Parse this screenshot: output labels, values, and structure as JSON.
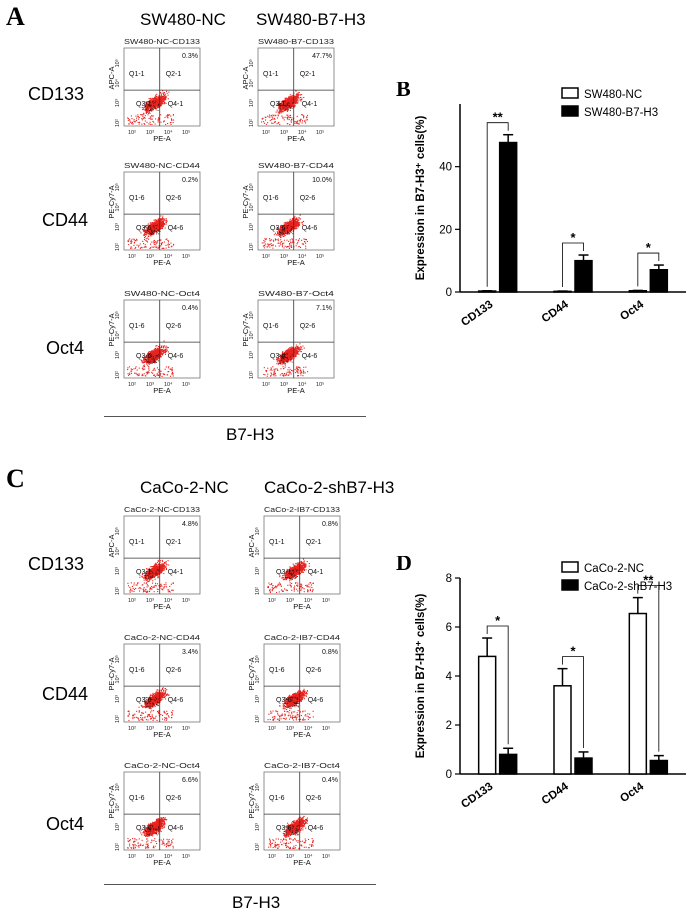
{
  "top": {
    "letter": "A",
    "col_headers": [
      "SW480-NC",
      "SW480-B7-H3"
    ],
    "row_labels": [
      "CD133",
      "CD44",
      "Oct4"
    ],
    "xaxis_label": "B7-H3"
  },
  "bottom": {
    "letter": "C",
    "col_headers": [
      "CaCo-2-NC",
      "CaCo-2-shB7-H3"
    ],
    "row_labels": [
      "CD133",
      "CD44",
      "Oct4"
    ],
    "xaxis_label": "B7-H3"
  },
  "flow_plots": [
    {
      "title": "SW480-NC-CD133",
      "percent": "0.3%",
      "q1": "Q1-1",
      "q2": "Q2-1",
      "q3": "Q3-1",
      "q4": "Q4-1",
      "ylabel": "APC-A",
      "xlabel": "PE-A"
    },
    {
      "title": "SW480-B7-CD133",
      "percent": "47.7%",
      "q1": "Q1-1",
      "q2": "Q2-1",
      "q3": "Q3-1",
      "q4": "Q4-1",
      "ylabel": "APC-A",
      "xlabel": "PE-A"
    },
    {
      "title": "SW480-NC-CD44",
      "percent": "0.2%",
      "q1": "Q1-6",
      "q2": "Q2-6",
      "q3": "Q3-6",
      "q4": "Q4-6",
      "ylabel": "PE-Cy7-A",
      "xlabel": "PE-A"
    },
    {
      "title": "SW480-B7-CD44",
      "percent": "10.0%",
      "q1": "Q1-6",
      "q2": "Q2-6",
      "q3": "Q3-6",
      "q4": "Q4-6",
      "ylabel": "PE-Cy7-A",
      "xlabel": "PE-A"
    },
    {
      "title": "SW480-NC-Oct4",
      "percent": "0.4%",
      "q1": "Q1-6",
      "q2": "Q2-6",
      "q3": "Q3-6",
      "q4": "Q4-6",
      "ylabel": "PE-Cy7-A",
      "xlabel": "PE-A"
    },
    {
      "title": "SW480-B7-Oct4",
      "percent": "7.1%",
      "q1": "Q1-6",
      "q2": "Q2-6",
      "q3": "Q3-6",
      "q4": "Q4-6",
      "ylabel": "PE-Cy7-A",
      "xlabel": "PE-A"
    },
    {
      "title": "CaCo-2-NC-CD133",
      "percent": "4.8%",
      "q1": "Q1-1",
      "q2": "Q2-1",
      "q3": "Q3-1",
      "q4": "Q4-1",
      "ylabel": "APC-A",
      "xlabel": "PE-A"
    },
    {
      "title": "CaCo-2-IB7-CD133",
      "percent": "0.8%",
      "q1": "Q1-1",
      "q2": "Q2-1",
      "q3": "Q3-1",
      "q4": "Q4-1",
      "ylabel": "APC-A",
      "xlabel": "PE-A"
    },
    {
      "title": "CaCo-2-NC-CD44",
      "percent": "3.4%",
      "q1": "Q1-6",
      "q2": "Q2-6",
      "q3": "Q3-6",
      "q4": "Q4-6",
      "ylabel": "PE-Cy7-A",
      "xlabel": "PE-A"
    },
    {
      "title": "CaCo-2-IB7-CD44",
      "percent": "0.8%",
      "q1": "Q1-6",
      "q2": "Q2-6",
      "q3": "Q3-6",
      "q4": "Q4-6",
      "ylabel": "PE-Cy7-A",
      "xlabel": "PE-A"
    },
    {
      "title": "CaCo-2-NC-Oct4",
      "percent": "6.6%",
      "q1": "Q1-6",
      "q2": "Q2-6",
      "q3": "Q3-6",
      "q4": "Q4-6",
      "ylabel": "PE-Cy7-A",
      "xlabel": "PE-A"
    },
    {
      "title": "CaCo-2-IB7-Oct4",
      "percent": "0.4%",
      "q1": "Q1-6",
      "q2": "Q2-6",
      "q3": "Q3-6",
      "q4": "Q4-6",
      "ylabel": "PE-Cy7-A",
      "xlabel": "PE-A"
    }
  ],
  "flow_tick_labels": [
    "10²",
    "10³",
    "10⁴",
    "10⁵"
  ],
  "colors": {
    "dots": "#e8231f",
    "bar_outline": "#000000",
    "filled": "#000000",
    "open": "#ffffff"
  },
  "chart_data": [
    {
      "panel_letter": "B",
      "type": "bar",
      "categories": [
        "CD133",
        "CD44",
        "Oct4"
      ],
      "series": [
        {
          "name": "SW480-NC",
          "values": [
            0.3,
            0.2,
            0.4
          ],
          "errors": [
            0.1,
            0.1,
            0.1
          ]
        },
        {
          "name": "SW480-B7-H3",
          "values": [
            47.7,
            10.0,
            7.1
          ],
          "errors": [
            2.5,
            1.8,
            1.5
          ]
        }
      ],
      "significance": [
        "**",
        "*",
        "*"
      ],
      "ylabel": "Expression in B7-H3⁺ cells(%)",
      "ylim": [
        0,
        60
      ],
      "yticks": [
        0,
        20,
        40
      ],
      "legend": "top-right"
    },
    {
      "panel_letter": "D",
      "type": "bar",
      "categories": [
        "CD133",
        "CD44",
        "Oct4"
      ],
      "series": [
        {
          "name": "CaCo-2-NC",
          "values": [
            4.8,
            3.6,
            6.55
          ],
          "errors": [
            0.75,
            0.7,
            0.65
          ]
        },
        {
          "name": "CaCo-2-shB7-H3",
          "values": [
            0.8,
            0.65,
            0.55
          ],
          "errors": [
            0.25,
            0.25,
            0.2
          ]
        }
      ],
      "significance": [
        "*",
        "*",
        "**"
      ],
      "ylabel": "Expression in B7-H3⁺ cells(%)",
      "ylim": [
        0,
        8
      ],
      "yticks": [
        0,
        2,
        4,
        6,
        8
      ],
      "legend": "top-right"
    }
  ]
}
